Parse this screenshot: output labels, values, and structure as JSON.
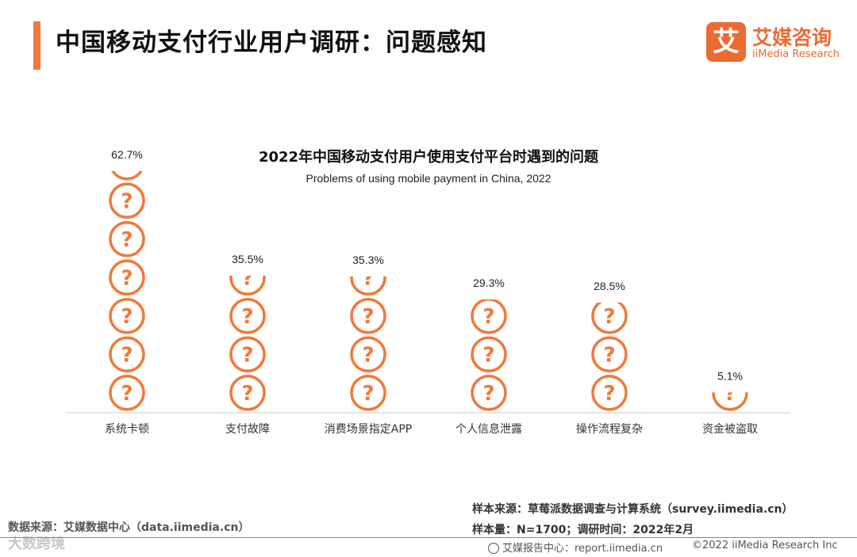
{
  "header": {
    "title": "中国移动支付行业用户调研：问题感知",
    "logo_mark": "艾",
    "logo_cn": "艾媒咨询",
    "logo_en": "iiMedia Research"
  },
  "chart_data": {
    "type": "bar",
    "title": "2022年中国移动支付用户使用支付平台时遇到的问题",
    "subtitle": "Problems of using mobile payment in China, 2022",
    "categories": [
      "系统卡顿",
      "支付故障",
      "消费场景指定APP",
      "个人信息泄露",
      "操作流程复杂",
      "资金被盗取"
    ],
    "values": [
      62.7,
      35.5,
      35.3,
      29.3,
      28.5,
      5.1
    ],
    "value_labels": [
      "62.7%",
      "35.5%",
      "35.3%",
      "29.3%",
      "28.5%",
      "5.1%"
    ],
    "icon_unit_value": 10,
    "xlabel": "",
    "ylabel": "",
    "unit": "%",
    "colors": {
      "icon": "#f07a3a",
      "axis": "#cccccc"
    }
  },
  "footer": {
    "source_right": "样本来源：草莓派数据调查与计算系统（survey.iimedia.cn）",
    "sample_size": "样本量：N=1700；调研时间：2022年2月",
    "source_left": "数据来源：艾媒数据中心（data.iimedia.cn）",
    "report_center": "艾媒报告中心：report.iimedia.cn",
    "copyright": "©2022 iiMedia Research Inc",
    "watermark": "大数跨境"
  }
}
